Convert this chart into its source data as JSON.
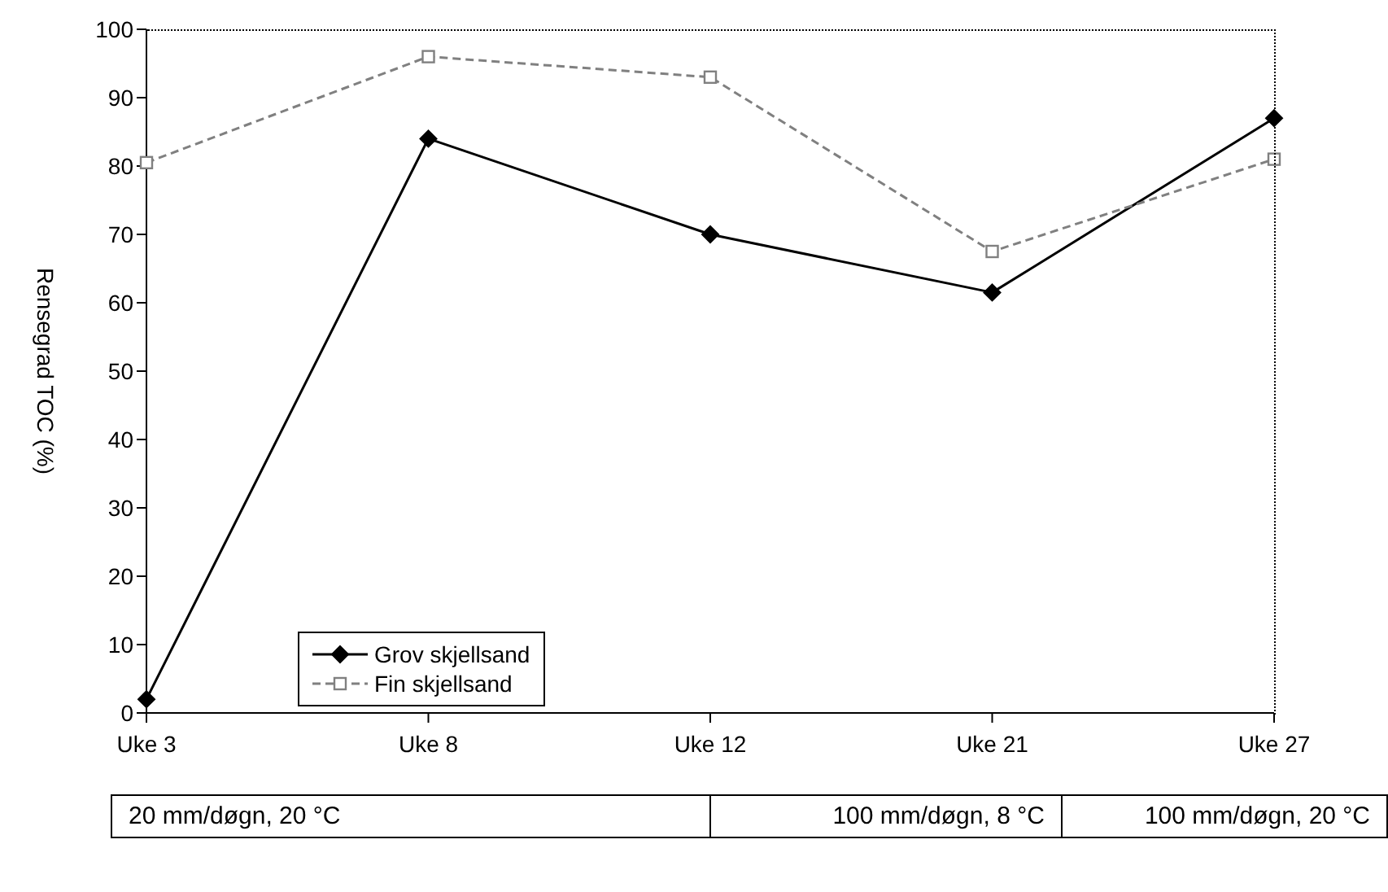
{
  "chart_data": {
    "type": "line",
    "ylabel": "Rensegrad TOC (%)",
    "categories": [
      "Uke 3",
      "Uke 8",
      "Uke 12",
      "Uke 21",
      "Uke 27"
    ],
    "series": [
      {
        "name": "Grov skjellsand",
        "color": "#000000",
        "values": [
          2,
          84,
          70,
          61.5,
          87
        ],
        "marker": "diamond",
        "line_style": "solid"
      },
      {
        "name": "Fin skjellsand",
        "color": "#808080",
        "values": [
          80.5,
          96,
          93,
          67.5,
          81
        ],
        "marker": "square",
        "line_style": "dashed"
      }
    ],
    "ylim": [
      0,
      100
    ],
    "yticks": [
      0,
      10,
      20,
      30,
      40,
      50,
      60,
      70,
      80,
      90,
      100
    ],
    "grid": false,
    "legend": "bottom left",
    "annotations": [
      "20 mm/døgn, 20 °C",
      "100 mm/døgn, 8 °C",
      "100 mm/døgn, 20 °C"
    ]
  }
}
